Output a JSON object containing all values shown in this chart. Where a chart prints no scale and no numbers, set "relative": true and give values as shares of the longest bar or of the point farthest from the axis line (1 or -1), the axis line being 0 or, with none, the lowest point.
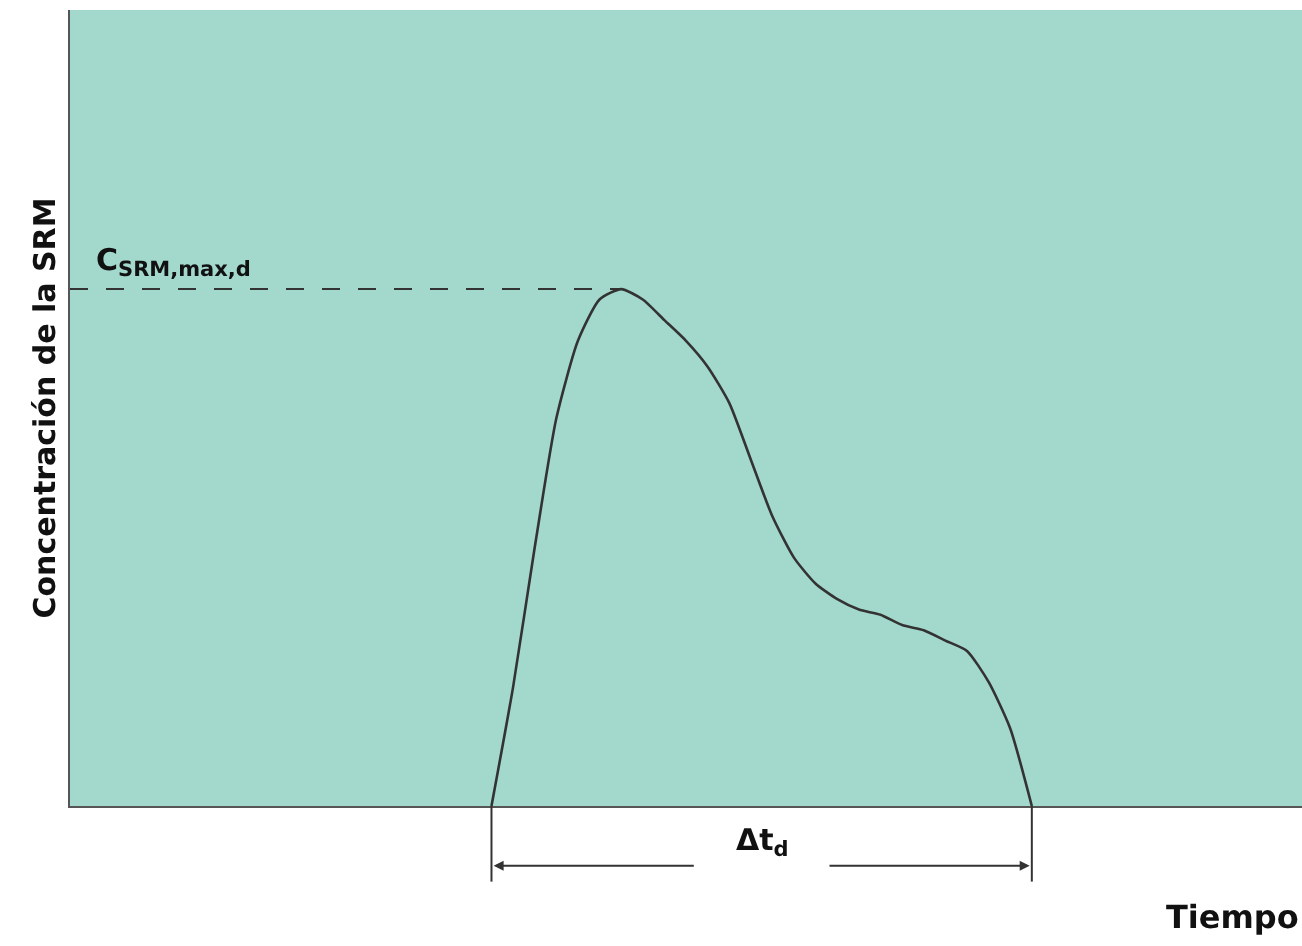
{
  "chart_data": {
    "type": "line",
    "relative": true,
    "xlabel": "Tiempo",
    "ylabel": "Concentración de la SRM",
    "categories": [
      null,
      null,
      null,
      null,
      null,
      null,
      null,
      null,
      null,
      null,
      null,
      null,
      null,
      null,
      null,
      null,
      null,
      null,
      null,
      null,
      null,
      null,
      null,
      null,
      null,
      null,
      null,
      null,
      null,
      null,
      null,
      null,
      null,
      null,
      null,
      null,
      null,
      null,
      null,
      null,
      null,
      null,
      null,
      null,
      null,
      null,
      null,
      null,
      null,
      null,
      null,
      null,
      null,
      null,
      null,
      null,
      null
    ],
    "series": [
      {
        "color": "#333333",
        "values": [
          null,
          null,
          null,
          null,
          null,
          null,
          null,
          null,
          null,
          null,
          null,
          null,
          null,
          null,
          null,
          null,
          null,
          null,
          null,
          0,
          0.23,
          0.5,
          0.75,
          0.9,
          0.98,
          1,
          0.98,
          0.94,
          0.9,
          0.85,
          0.78,
          0.67,
          0.56,
          0.48,
          0.43,
          0.4,
          0.38,
          0.37,
          0.35,
          0.34,
          0.32,
          0.3,
          0.24,
          0.15,
          0,
          null,
          null,
          null,
          null,
          null,
          null,
          null,
          null,
          null,
          null,
          null,
          null
        ]
      }
    ],
    "ref_lines": [
      {
        "axis": "y",
        "value": 1,
        "label": "C$_{SRM,max,d}$",
        "line_style": "dashed",
        "color": "#333333"
      }
    ],
    "annotations": [
      "Δt$_{d}$"
    ],
    "grid": false,
    "marker": "none",
    "line_style": "solid",
    "tick_labels": false
  }
}
